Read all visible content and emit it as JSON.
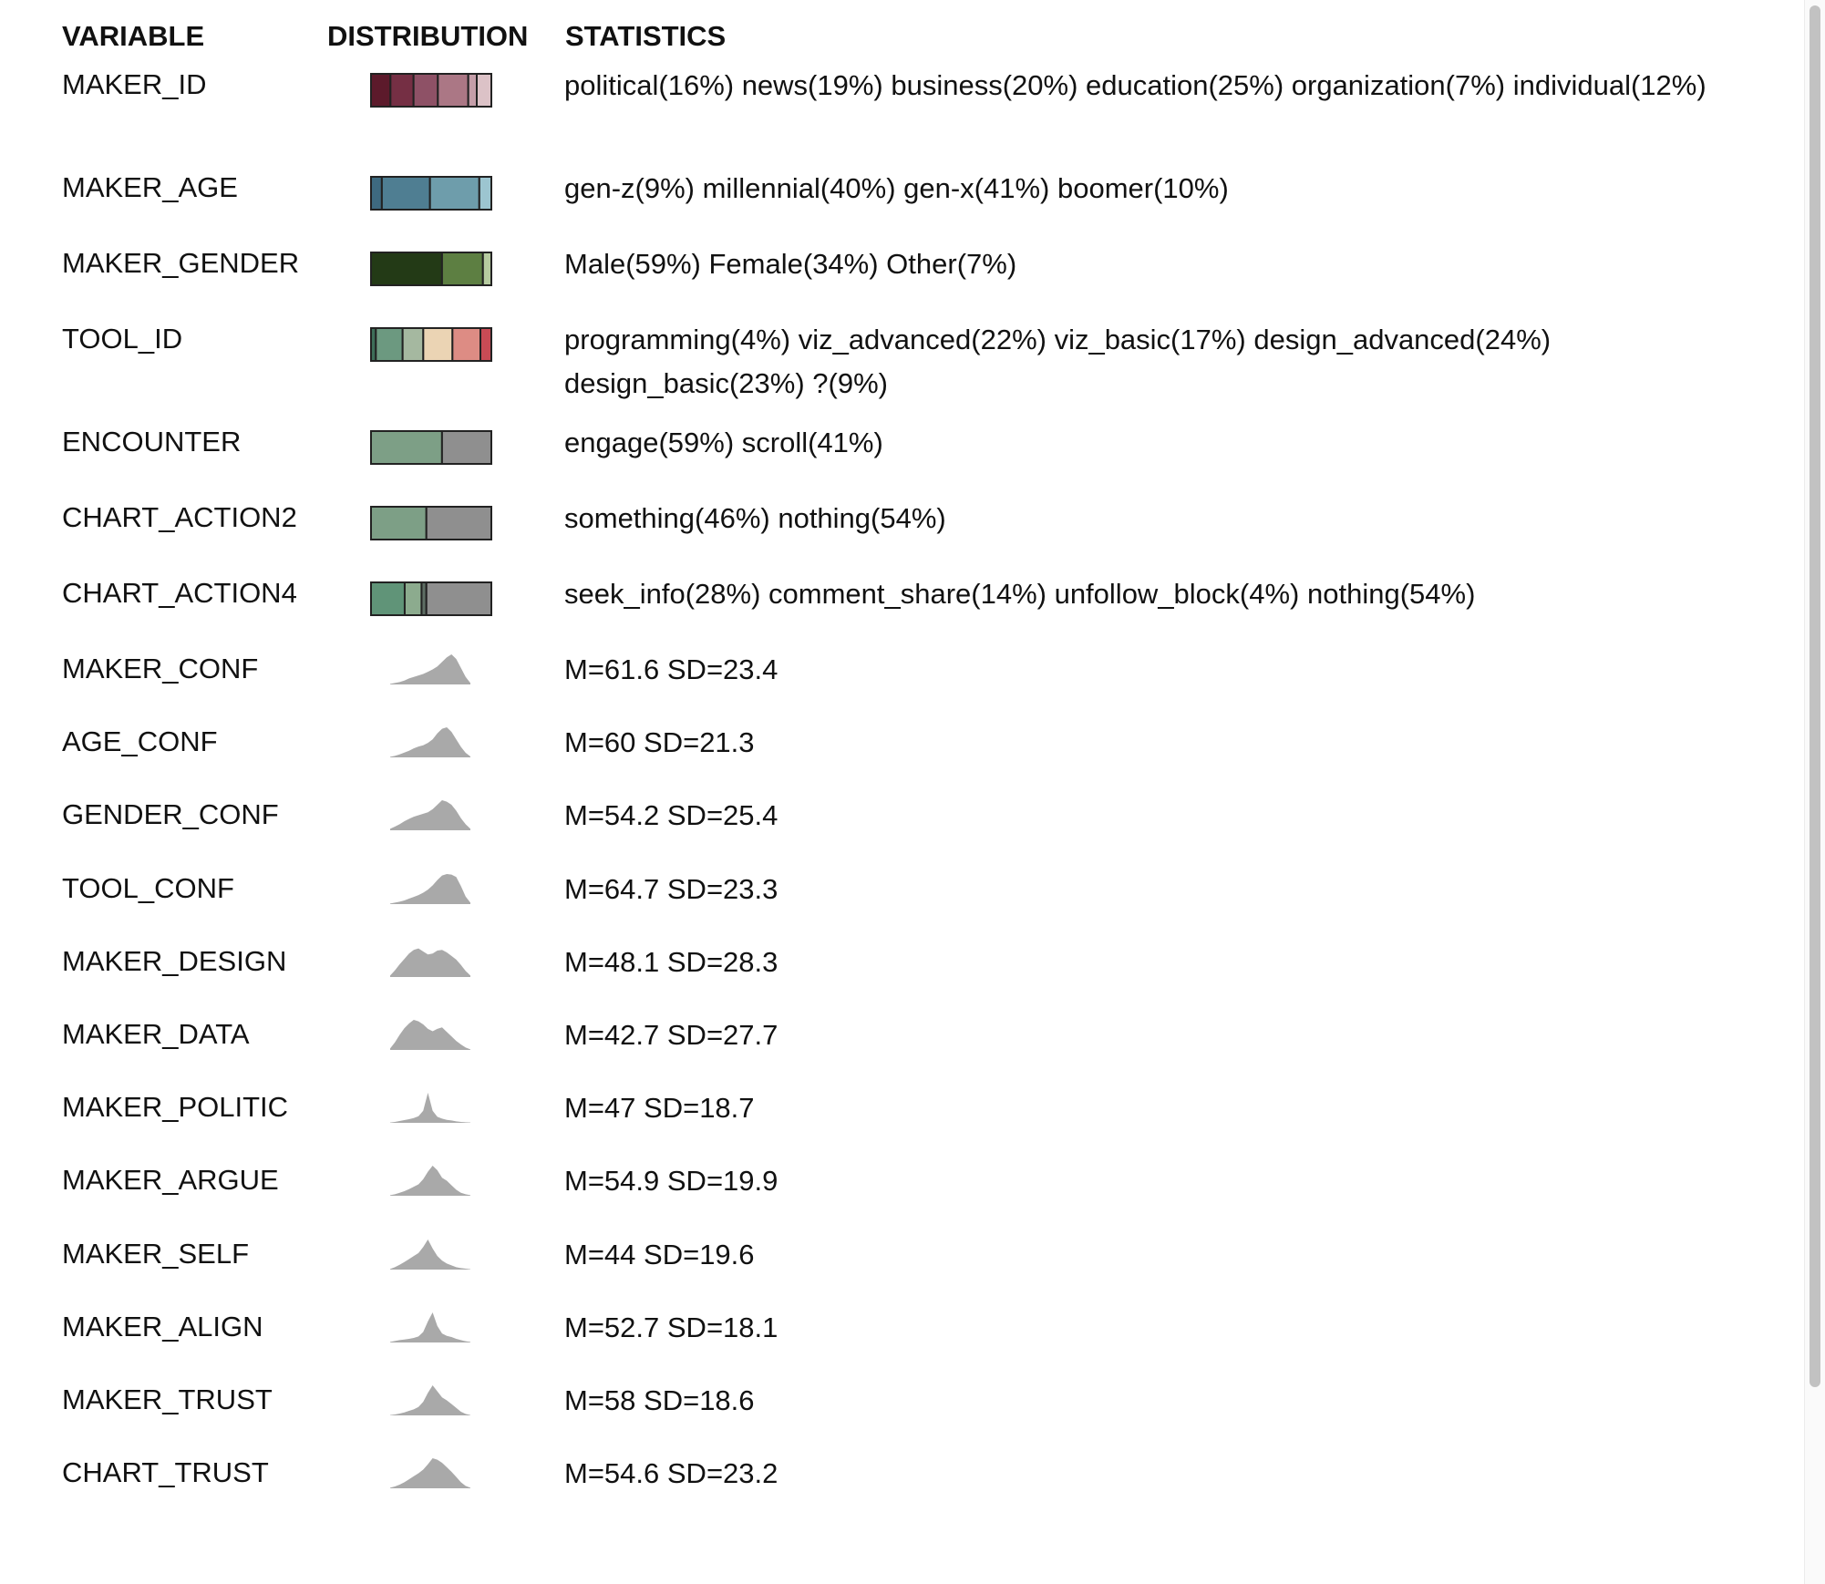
{
  "headers": {
    "variable": "VARIABLE",
    "distribution": "DISTRIBUTION",
    "statistics": "STATISTICS"
  },
  "categorical": [
    {
      "name": "MAKER_ID",
      "stats": "political(16%) news(19%) business(20%) education(25%) organization(7%) individual(12%)",
      "segments": [
        {
          "label": "political",
          "pct": 16,
          "color": "#5c1a2b"
        },
        {
          "label": "news",
          "pct": 19,
          "color": "#752f44"
        },
        {
          "label": "business",
          "pct": 20,
          "color": "#8e5166"
        },
        {
          "label": "education",
          "pct": 25,
          "color": "#ab7785"
        },
        {
          "label": "organization",
          "pct": 7,
          "color": "#c59ea9"
        },
        {
          "label": "individual",
          "pct": 12,
          "color": "#dcc2c7"
        }
      ]
    },
    {
      "name": "MAKER_AGE",
      "stats": "gen-z(9%) millennial(40%) gen-x(41%) boomer(10%)",
      "segments": [
        {
          "label": "gen-z",
          "pct": 9,
          "color": "#3e6a80"
        },
        {
          "label": "millennial",
          "pct": 40,
          "color": "#4f7e92"
        },
        {
          "label": "gen-x",
          "pct": 41,
          "color": "#6e9dab"
        },
        {
          "label": "boomer",
          "pct": 10,
          "color": "#9cc5d0"
        }
      ]
    },
    {
      "name": "MAKER_GENDER",
      "stats": "Male(59%) Female(34%) Other(7%)",
      "segments": [
        {
          "label": "Male",
          "pct": 59,
          "color": "#233a16"
        },
        {
          "label": "Female",
          "pct": 34,
          "color": "#5d7f42"
        },
        {
          "label": "Other",
          "pct": 7,
          "color": "#b6cba0"
        }
      ]
    },
    {
      "name": "TOOL_ID",
      "stats": "programming(4%) viz_advanced(22%) viz_basic(17%) design_advanced(24%) design_basic(23%) ?(9%)",
      "segments": [
        {
          "label": "programming",
          "pct": 4,
          "color": "#3d6e58"
        },
        {
          "label": "viz_advanced",
          "pct": 22,
          "color": "#6c9980"
        },
        {
          "label": "viz_basic",
          "pct": 17,
          "color": "#a5b8a0"
        },
        {
          "label": "design_advanced",
          "pct": 24,
          "color": "#ebd4b4"
        },
        {
          "label": "design_basic",
          "pct": 23,
          "color": "#dd8c84"
        },
        {
          "label": "?",
          "pct": 9,
          "color": "#c94b55"
        }
      ]
    },
    {
      "name": "ENCOUNTER",
      "stats": "engage(59%) scroll(41%)",
      "segments": [
        {
          "label": "engage",
          "pct": 59,
          "color": "#7d9f86"
        },
        {
          "label": "scroll",
          "pct": 41,
          "color": "#8f8f8f"
        }
      ]
    },
    {
      "name": "CHART_ACTION2",
      "stats": "something(46%) nothing(54%)",
      "segments": [
        {
          "label": "something",
          "pct": 46,
          "color": "#7d9f86"
        },
        {
          "label": "nothing",
          "pct": 54,
          "color": "#8f8f8f"
        }
      ]
    },
    {
      "name": "CHART_ACTION4",
      "stats": "seek_info(28%) comment_share(14%) unfollow_block(4%) nothing(54%)",
      "segments": [
        {
          "label": "seek_info",
          "pct": 28,
          "color": "#609478"
        },
        {
          "label": "comment_share",
          "pct": 14,
          "color": "#8cab8e"
        },
        {
          "label": "unfollow_block",
          "pct": 4,
          "color": "#5e6e64"
        },
        {
          "label": "nothing",
          "pct": 54,
          "color": "#8f8f8f"
        }
      ]
    }
  ],
  "numeric": [
    {
      "name": "MAKER_CONF",
      "stats": "M=61.6 SD=23.4",
      "density": [
        0.02,
        0.05,
        0.08,
        0.13,
        0.2,
        0.25,
        0.3,
        0.35,
        0.42,
        0.5,
        0.6,
        0.75,
        0.9,
        1.0,
        0.85,
        0.55,
        0.25,
        0.05
      ]
    },
    {
      "name": "AGE_CONF",
      "stats": "M=60 SD=21.3",
      "density": [
        0.02,
        0.05,
        0.1,
        0.16,
        0.22,
        0.3,
        0.36,
        0.4,
        0.48,
        0.6,
        0.8,
        0.95,
        1.0,
        0.85,
        0.6,
        0.35,
        0.15,
        0.03
      ]
    },
    {
      "name": "GENDER_CONF",
      "stats": "M=54.2 SD=25.4",
      "density": [
        0.05,
        0.12,
        0.2,
        0.3,
        0.38,
        0.45,
        0.5,
        0.55,
        0.6,
        0.7,
        0.85,
        1.0,
        0.95,
        0.85,
        0.65,
        0.4,
        0.2,
        0.05
      ]
    },
    {
      "name": "TOOL_CONF",
      "stats": "M=64.7 SD=23.3",
      "density": [
        0.02,
        0.05,
        0.08,
        0.12,
        0.18,
        0.24,
        0.3,
        0.38,
        0.48,
        0.62,
        0.8,
        0.95,
        1.0,
        0.98,
        0.9,
        0.6,
        0.25,
        0.05
      ]
    },
    {
      "name": "MAKER_DESIGN",
      "stats": "M=48.1 SD=28.3",
      "density": [
        0.05,
        0.22,
        0.42,
        0.6,
        0.78,
        0.9,
        0.95,
        0.85,
        0.75,
        0.78,
        0.88,
        0.9,
        0.82,
        0.7,
        0.58,
        0.4,
        0.2,
        0.05
      ]
    },
    {
      "name": "MAKER_DATA",
      "stats": "M=42.7 SD=27.7",
      "density": [
        0.05,
        0.25,
        0.5,
        0.72,
        0.88,
        1.0,
        0.95,
        0.85,
        0.7,
        0.62,
        0.7,
        0.75,
        0.6,
        0.45,
        0.3,
        0.18,
        0.08,
        0.02
      ]
    },
    {
      "name": "MAKER_POLITIC",
      "stats": "M=47 SD=18.7",
      "density": [
        0.01,
        0.03,
        0.06,
        0.09,
        0.12,
        0.16,
        0.22,
        0.4,
        1.0,
        0.4,
        0.2,
        0.14,
        0.1,
        0.08,
        0.05,
        0.03,
        0.02,
        0.01
      ]
    },
    {
      "name": "MAKER_ARGUE",
      "stats": "M=54.9 SD=19.9",
      "density": [
        0.02,
        0.05,
        0.1,
        0.15,
        0.22,
        0.3,
        0.38,
        0.55,
        0.8,
        1.0,
        0.85,
        0.6,
        0.5,
        0.35,
        0.2,
        0.1,
        0.05,
        0.02
      ]
    },
    {
      "name": "MAKER_SELF",
      "stats": "M=44 SD=19.6",
      "density": [
        0.02,
        0.08,
        0.16,
        0.25,
        0.35,
        0.45,
        0.55,
        0.75,
        1.0,
        0.7,
        0.45,
        0.3,
        0.2,
        0.14,
        0.08,
        0.05,
        0.03,
        0.01
      ]
    },
    {
      "name": "MAKER_ALIGN",
      "stats": "M=52.7 SD=18.1",
      "density": [
        0.02,
        0.05,
        0.08,
        0.1,
        0.12,
        0.15,
        0.2,
        0.35,
        0.7,
        1.0,
        0.55,
        0.3,
        0.22,
        0.18,
        0.12,
        0.08,
        0.04,
        0.02
      ]
    },
    {
      "name": "MAKER_TRUST",
      "stats": "M=58 SD=18.6",
      "density": [
        0.01,
        0.03,
        0.06,
        0.1,
        0.15,
        0.2,
        0.28,
        0.45,
        0.75,
        1.0,
        0.8,
        0.6,
        0.5,
        0.38,
        0.25,
        0.12,
        0.05,
        0.01
      ]
    },
    {
      "name": "CHART_TRUST",
      "stats": "M=54.6 SD=23.2",
      "density": [
        0.02,
        0.06,
        0.12,
        0.2,
        0.3,
        0.4,
        0.5,
        0.62,
        0.8,
        1.0,
        0.95,
        0.85,
        0.7,
        0.55,
        0.38,
        0.2,
        0.08,
        0.02
      ]
    }
  ],
  "colors": {
    "density_fill": "#a9a9a9",
    "bar_border": "#222222",
    "text": "#111111",
    "scrollbar_thumb": "#c2c2c2"
  }
}
